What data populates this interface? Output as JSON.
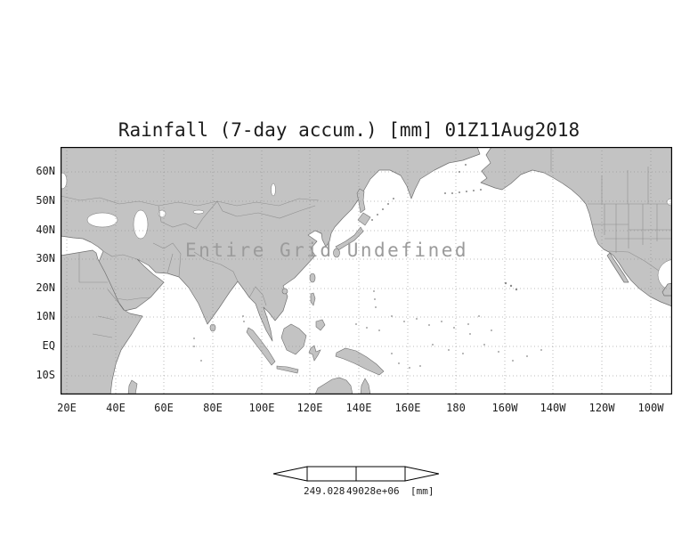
{
  "title": "Rainfall (7-day accum.) [mm] 01Z11Aug2018",
  "map": {
    "no_data_message": "Entire Grid Undefined",
    "lat_labels": [
      "60N",
      "50N",
      "40N",
      "30N",
      "20N",
      "10N",
      "EQ",
      "10S"
    ],
    "lon_labels": [
      "20E",
      "40E",
      "60E",
      "80E",
      "100E",
      "120E",
      "140E",
      "160E",
      "180",
      "160W",
      "140W",
      "120W",
      "100W"
    ],
    "colors": {
      "land": "#c3c3c3",
      "ocean": "#ffffff",
      "coastline": "#6f6f6f",
      "country_border": "#8f8f8f",
      "gridline": "#8c8c8c",
      "frame": "#000000"
    }
  },
  "colorbar": {
    "tick_labels": [
      "249.028",
      "49028e+06"
    ],
    "unit_label": "[mm]"
  }
}
